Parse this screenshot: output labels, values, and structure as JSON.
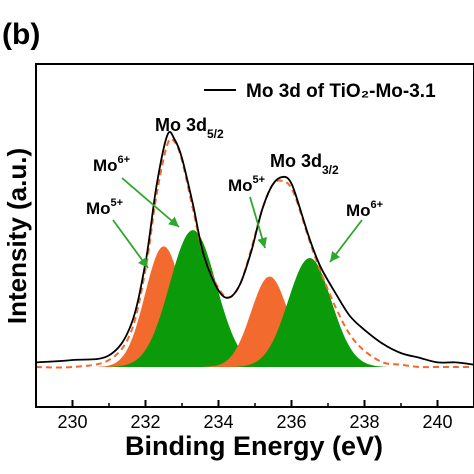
{
  "chart_data": {
    "type": "line",
    "panel_label": "(b)",
    "xlabel": "Binding Energy (eV)",
    "ylabel": "Intensity (a.u.)",
    "xlim": [
      229,
      241
    ],
    "xticks": [
      230,
      232,
      234,
      236,
      238,
      240
    ],
    "xtick_labels": [
      "230",
      "232",
      "234",
      "236",
      "238",
      "240"
    ],
    "yticks_shown": false,
    "legend": {
      "label": "Mo 3d of TiO₂-Mo-3.1",
      "position": "top-right"
    },
    "annotations": {
      "peak_left": "Mo 3d5/2",
      "peak_right": "Mo 3d3/2",
      "mo5_left": "Mo5+",
      "mo6_left": "Mo6+",
      "mo5_right": "Mo5+",
      "mo6_right": "Mo6+"
    },
    "raw_spectrum": {
      "x": [
        229.0,
        230.0,
        231.0,
        231.6,
        232.0,
        232.3,
        232.6,
        232.8,
        233.0,
        233.3,
        233.6,
        234.0,
        234.3,
        234.6,
        234.9,
        235.2,
        235.5,
        235.8,
        236.0,
        236.2,
        236.5,
        236.8,
        237.2,
        237.6,
        238.0,
        238.5,
        239.0,
        239.5,
        240.0,
        240.5,
        241.0
      ],
      "y": [
        0.02,
        0.03,
        0.05,
        0.18,
        0.45,
        0.78,
        1.0,
        0.98,
        0.9,
        0.7,
        0.48,
        0.33,
        0.3,
        0.36,
        0.5,
        0.68,
        0.79,
        0.82,
        0.79,
        0.7,
        0.55,
        0.43,
        0.32,
        0.22,
        0.16,
        0.1,
        0.06,
        0.04,
        0.02,
        0.02,
        0.01
      ]
    },
    "fit_envelope": {
      "x": [
        229.0,
        230.0,
        231.0,
        231.6,
        232.0,
        232.3,
        232.6,
        232.8,
        233.0,
        233.3,
        233.6,
        234.0,
        234.3,
        234.6,
        234.9,
        235.2,
        235.5,
        235.8,
        236.0,
        236.2,
        236.5,
        236.8,
        237.2,
        237.6,
        238.0,
        238.5,
        239.0,
        239.5,
        240.0,
        240.5,
        241.0
      ],
      "y": [
        0.0,
        0.0,
        0.03,
        0.15,
        0.42,
        0.74,
        0.96,
        0.97,
        0.89,
        0.68,
        0.48,
        0.34,
        0.3,
        0.36,
        0.51,
        0.68,
        0.79,
        0.8,
        0.77,
        0.69,
        0.54,
        0.41,
        0.26,
        0.14,
        0.07,
        0.02,
        0.01,
        0.0,
        0.0,
        0.0,
        0.0
      ]
    },
    "components": [
      {
        "label": "Mo5+ 3d5/2",
        "center": 232.5,
        "amplitude": 0.52,
        "fwhm": 1.2,
        "color": "#f26a2e"
      },
      {
        "label": "Mo6+ 3d5/2",
        "center": 233.3,
        "amplitude": 0.59,
        "fwhm": 1.5,
        "color": "#0a9a0a"
      },
      {
        "label": "Mo5+ 3d3/2",
        "center": 235.4,
        "amplitude": 0.39,
        "fwhm": 1.2,
        "color": "#f26a2e"
      },
      {
        "label": "Mo6+ 3d3/2",
        "center": 236.5,
        "amplitude": 0.47,
        "fwhm": 1.4,
        "color": "#0a9a0a"
      }
    ],
    "colors": {
      "raw": "#000000",
      "fit": "#f26a2e",
      "mo5": "#f26a2e",
      "mo6": "#0a9a0a",
      "arrow": "#2da82d"
    }
  }
}
